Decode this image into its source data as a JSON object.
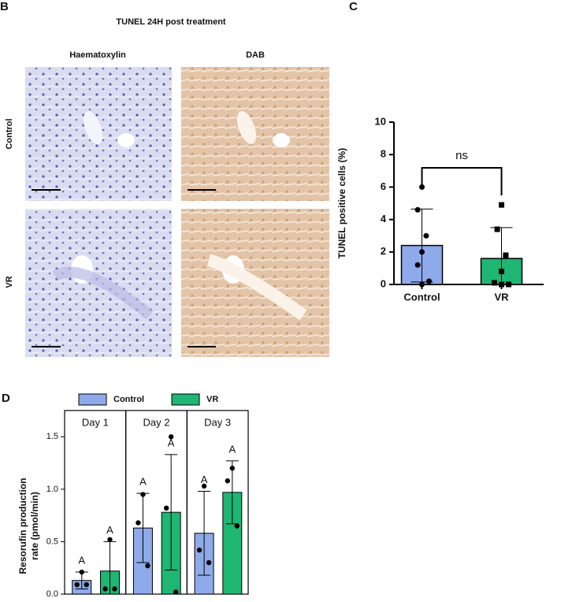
{
  "figure": {
    "panel_b": {
      "letter": "B",
      "title": "TUNEL 24H post treatment",
      "columns": [
        "Haematoxylin",
        "DAB"
      ],
      "rows": [
        "Control",
        "VR"
      ]
    },
    "panel_c_letter": "C",
    "panel_d_letter": "D"
  },
  "chart_data": [
    {
      "type": "bar",
      "categories": [
        "Control",
        "VR"
      ],
      "values": [
        2.4,
        1.6
      ],
      "errors": [
        2.25,
        1.9
      ],
      "colors": [
        "#8eaaea",
        "#1fb573"
      ],
      "markers": [
        "circle",
        "square"
      ],
      "points": [
        [
          6.0,
          4.6,
          3.0,
          2.0,
          1.2,
          0.2,
          0.0
        ],
        [
          4.9,
          3.4,
          1.8,
          0.8,
          0.1,
          0.0,
          0.0
        ]
      ],
      "y_label": "TUNEL positive cells (%)",
      "ylim": [
        0,
        10
      ],
      "yticks": [
        0,
        2,
        4,
        6,
        8,
        10
      ],
      "annotation": "ns"
    },
    {
      "type": "grouped_bar",
      "categories": [
        "Day 1",
        "Day 2",
        "Day 3"
      ],
      "series": [
        {
          "name": "Control",
          "color": "#8eaaea",
          "values": [
            0.13,
            0.63,
            0.58
          ],
          "errors": [
            0.08,
            0.33,
            0.4
          ],
          "labels": [
            "A",
            "A",
            "A"
          ],
          "points": [
            [
              0.21,
              0.09,
              0.09
            ],
            [
              0.95,
              0.68,
              0.27
            ],
            [
              1.03,
              0.42,
              0.3
            ]
          ]
        },
        {
          "name": "VR",
          "color": "#1fb573",
          "values": [
            0.22,
            0.78,
            0.97
          ],
          "errors": [
            0.28,
            0.55,
            0.3
          ],
          "labels": [
            "A",
            "A",
            "A"
          ],
          "points": [
            [
              0.52,
              0.05,
              0.05
            ],
            [
              1.5,
              0.82,
              0.02
            ],
            [
              1.2,
              1.08,
              0.65
            ]
          ]
        }
      ],
      "y_label_lines": [
        "Resorufin production",
        "rate (pmol/min)"
      ],
      "ylim": [
        0,
        1.75
      ],
      "yticks": [
        {
          "value": 0,
          "label": "0.0"
        },
        {
          "value": 0.5,
          "label": "0.5"
        },
        {
          "value": 1,
          "label": "1.0"
        },
        {
          "value": 1.5,
          "label": "1.5"
        }
      ]
    }
  ]
}
